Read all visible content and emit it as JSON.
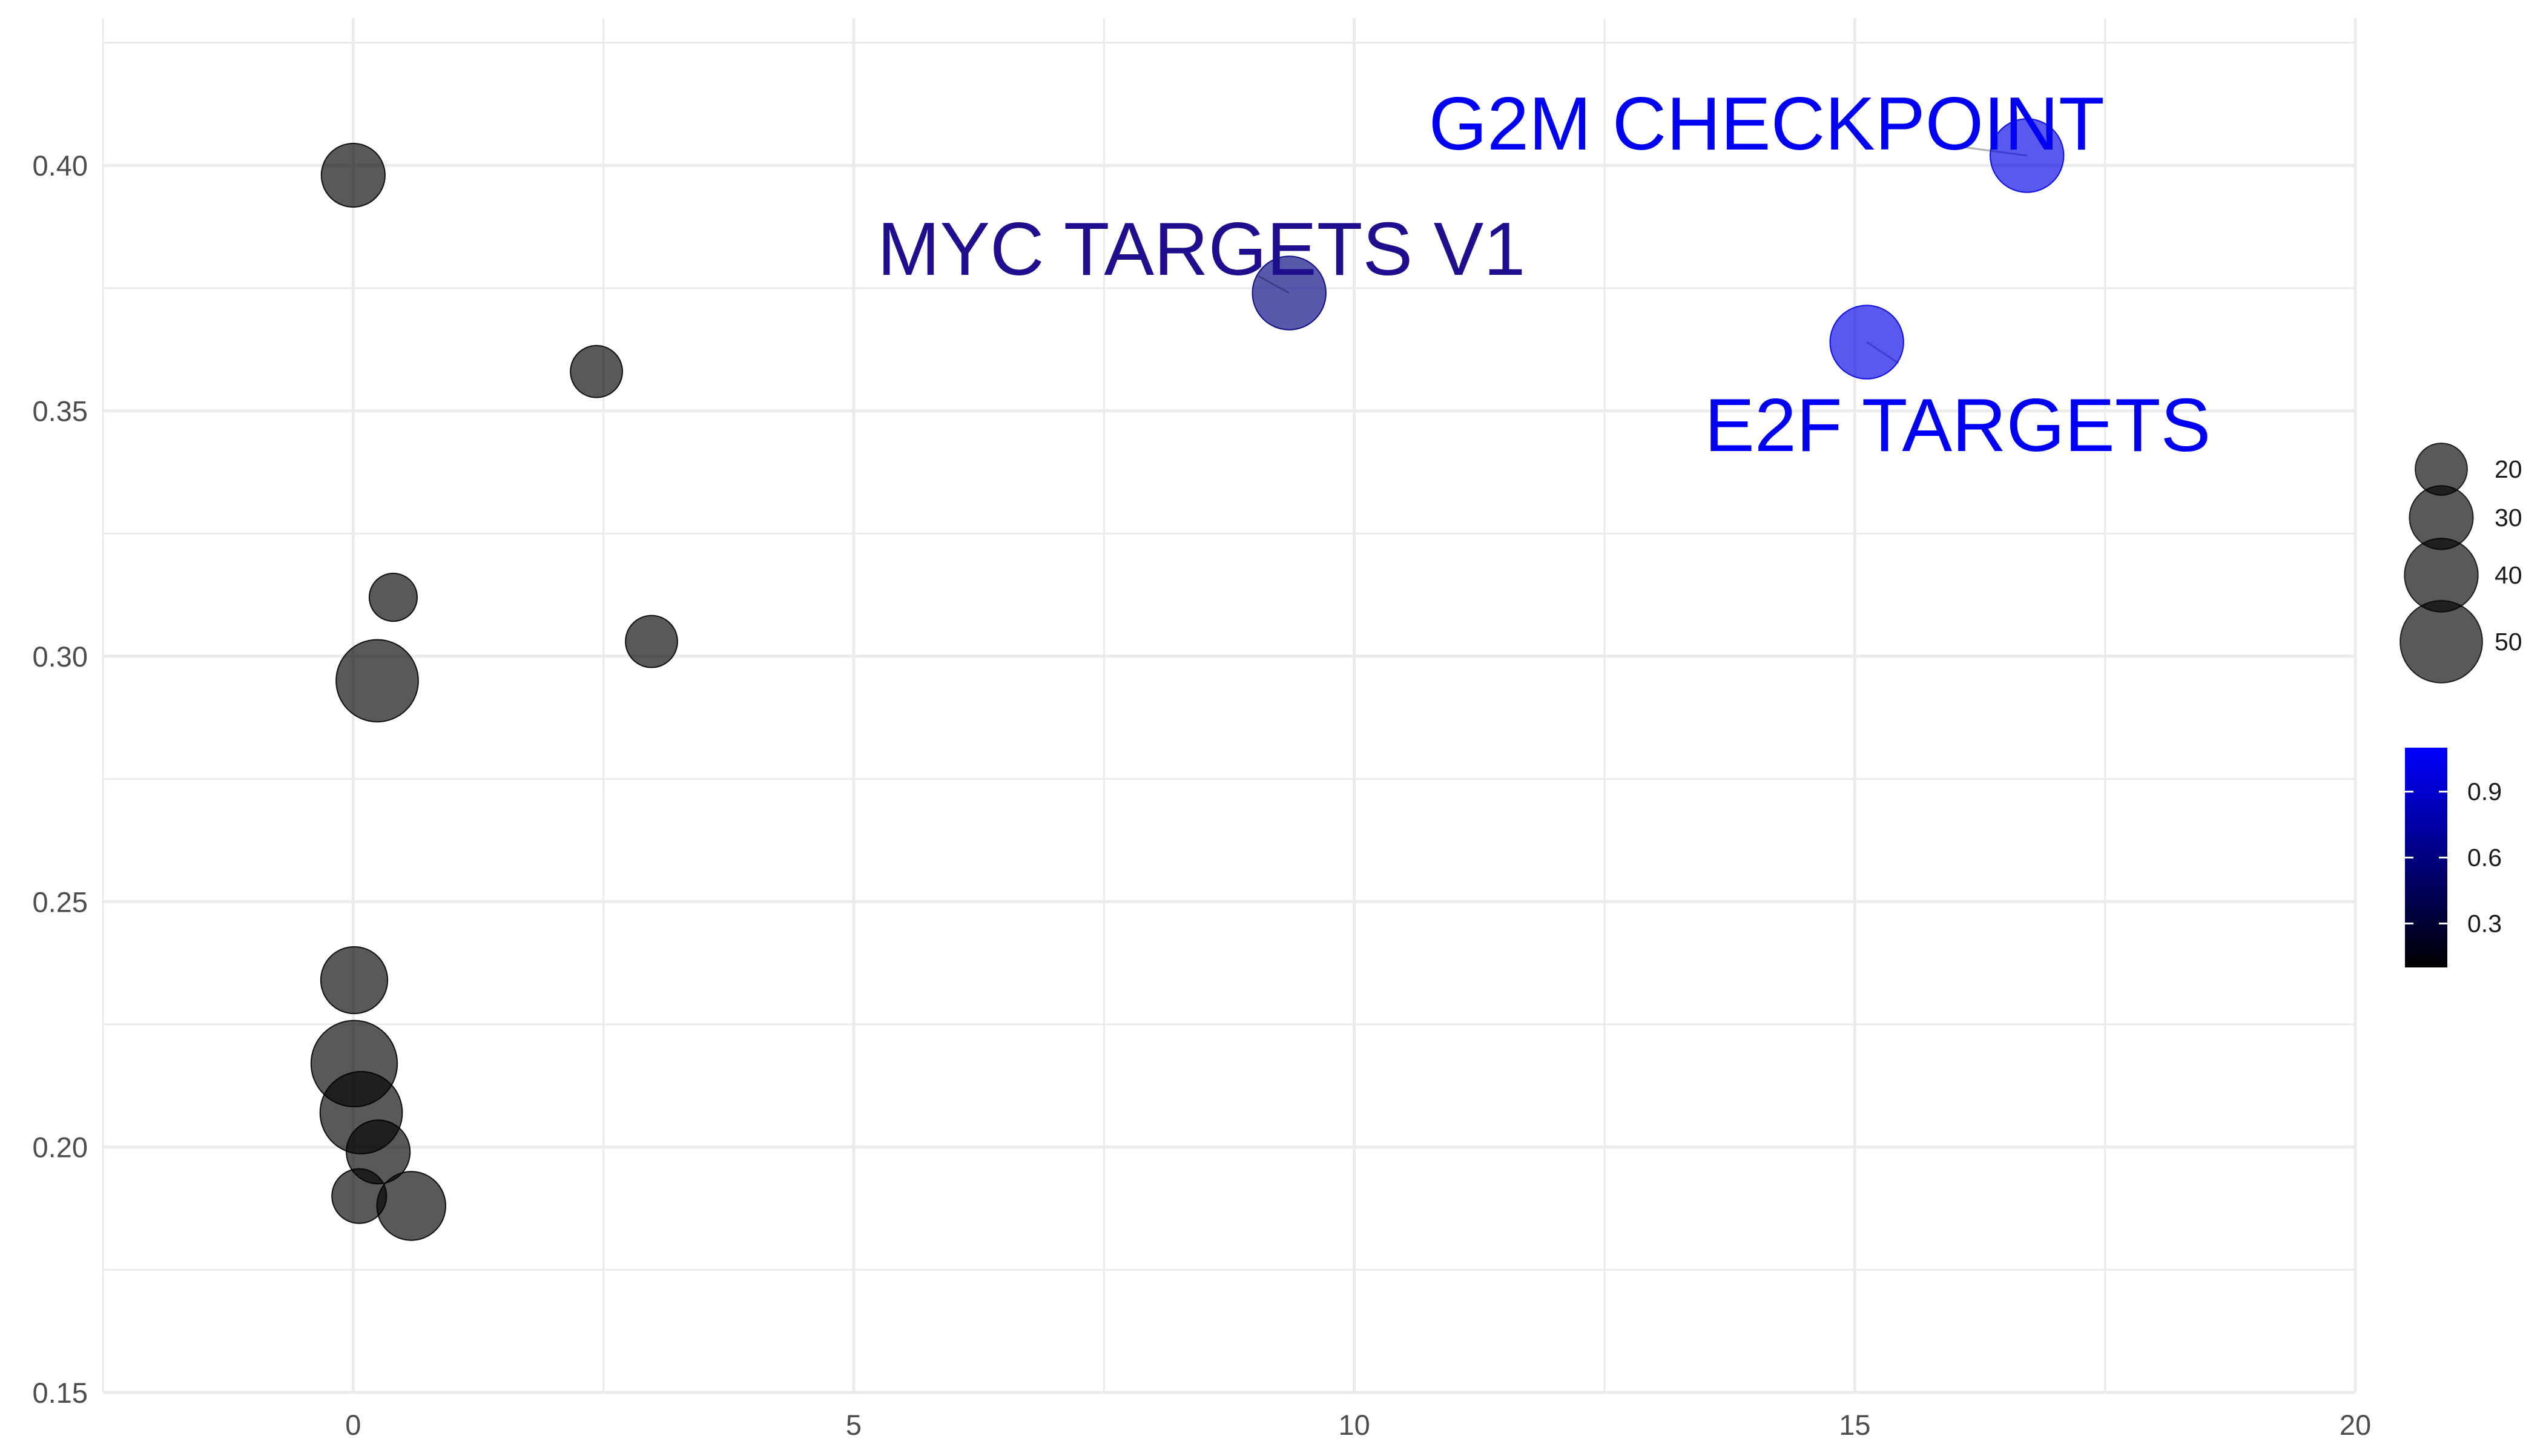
{
  "chart_data": {
    "type": "scatter",
    "title": "",
    "xlabel": "",
    "ylabel": "",
    "xlim": [
      -2.5,
      20
    ],
    "ylim": [
      0.15,
      0.43
    ],
    "x_ticks": [
      0,
      5,
      10,
      15,
      20
    ],
    "x_tick_labels": [
      "0",
      "5",
      "10",
      "15",
      "20"
    ],
    "y_ticks": [
      0.15,
      0.2,
      0.25,
      0.3,
      0.35,
      0.4
    ],
    "y_tick_labels": [
      "0.15",
      "0.20",
      "0.25",
      "0.30",
      "0.35",
      "0.40"
    ],
    "grid": true,
    "points": [
      {
        "x": 0.0,
        "y": 0.398,
        "size": 30,
        "color_value": 0.0
      },
      {
        "x": 2.43,
        "y": 0.358,
        "size": 20,
        "color_value": 0.0
      },
      {
        "x": 0.4,
        "y": 0.312,
        "size": 17,
        "color_value": 0.0
      },
      {
        "x": 2.98,
        "y": 0.303,
        "size": 20,
        "color_value": 0.0
      },
      {
        "x": 0.24,
        "y": 0.295,
        "size": 50,
        "color_value": 0.0
      },
      {
        "x": 0.01,
        "y": 0.234,
        "size": 33,
        "color_value": 0.0
      },
      {
        "x": 0.01,
        "y": 0.217,
        "size": 55,
        "color_value": 0.0
      },
      {
        "x": 0.08,
        "y": 0.207,
        "size": 50,
        "color_value": 0.0
      },
      {
        "x": 0.25,
        "y": 0.199,
        "size": 30,
        "color_value": 0.0
      },
      {
        "x": 0.06,
        "y": 0.19,
        "size": 22,
        "color_value": 0.0
      },
      {
        "x": 0.58,
        "y": 0.188,
        "size": 35,
        "color_value": 0.0
      },
      {
        "x": 9.35,
        "y": 0.374,
        "size": 40,
        "color_value": 0.6,
        "label": "MYC TARGETS V1"
      },
      {
        "x": 15.12,
        "y": 0.364,
        "size": 40,
        "color_value": 1.0,
        "label": "E2F TARGETS"
      },
      {
        "x": 16.72,
        "y": 0.402,
        "size": 40,
        "color_value": 1.0,
        "label": "G2M CHECKPOINT"
      }
    ],
    "size_legend": {
      "title": "",
      "entries": [
        {
          "value": 20,
          "label": "20"
        },
        {
          "value": 30,
          "label": "30"
        },
        {
          "value": 40,
          "label": "40"
        },
        {
          "value": 50,
          "label": "50"
        }
      ]
    },
    "color_legend": {
      "title": "",
      "low_color": "#000000",
      "high_color": "#0000ff",
      "range": [
        0.1,
        1.1
      ],
      "ticks": [
        0.3,
        0.6,
        0.9
      ],
      "tick_labels": [
        "0.3",
        "0.6",
        "0.9"
      ]
    },
    "point_fill_base": "#000000",
    "point_alpha": 0.65,
    "grid_color": "#ebebeb",
    "annotation_colors": {
      "MYC TARGETS V1": "#1f0f8f",
      "E2F TARGETS": "#0000f5",
      "G2M CHECKPOINT": "#0000f5"
    }
  }
}
